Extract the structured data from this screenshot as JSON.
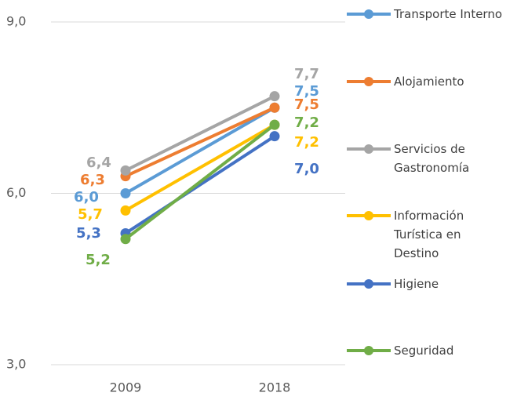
{
  "chart_data": {
    "type": "line",
    "categories": [
      "2009",
      "2018"
    ],
    "series": [
      {
        "name": "Transporte Interno",
        "color": "#5b9bd5",
        "values": [
          6.0,
          7.5
        ],
        "value_labels": [
          "6,0",
          "7,5"
        ]
      },
      {
        "name": "Alojamiento",
        "color": "#ed7d31",
        "values": [
          6.3,
          7.5
        ],
        "value_labels": [
          "6,3",
          "7,5"
        ]
      },
      {
        "name": "Servicios de Gastronomía",
        "color": "#a5a5a5",
        "values": [
          6.4,
          7.7
        ],
        "value_labels": [
          "6,4",
          "7,7"
        ]
      },
      {
        "name": "Información Turística en Destino",
        "color": "#ffc000",
        "values": [
          5.7,
          7.2
        ],
        "value_labels": [
          "5,7",
          "7,2"
        ]
      },
      {
        "name": "Higiene",
        "color": "#4472c4",
        "values": [
          5.3,
          7.0
        ],
        "value_labels": [
          "5,3",
          "7,0"
        ]
      },
      {
        "name": "Seguridad",
        "color": "#70ad47",
        "values": [
          5.2,
          7.2
        ],
        "value_labels": [
          "5,2",
          "7,2"
        ]
      }
    ],
    "ylim": [
      3,
      9
    ],
    "yticks": [
      {
        "value": 3,
        "label": "3,0"
      },
      {
        "value": 6,
        "label": "6,0"
      },
      {
        "value": 9,
        "label": "9,0"
      }
    ],
    "grid": true,
    "legend": "right"
  }
}
